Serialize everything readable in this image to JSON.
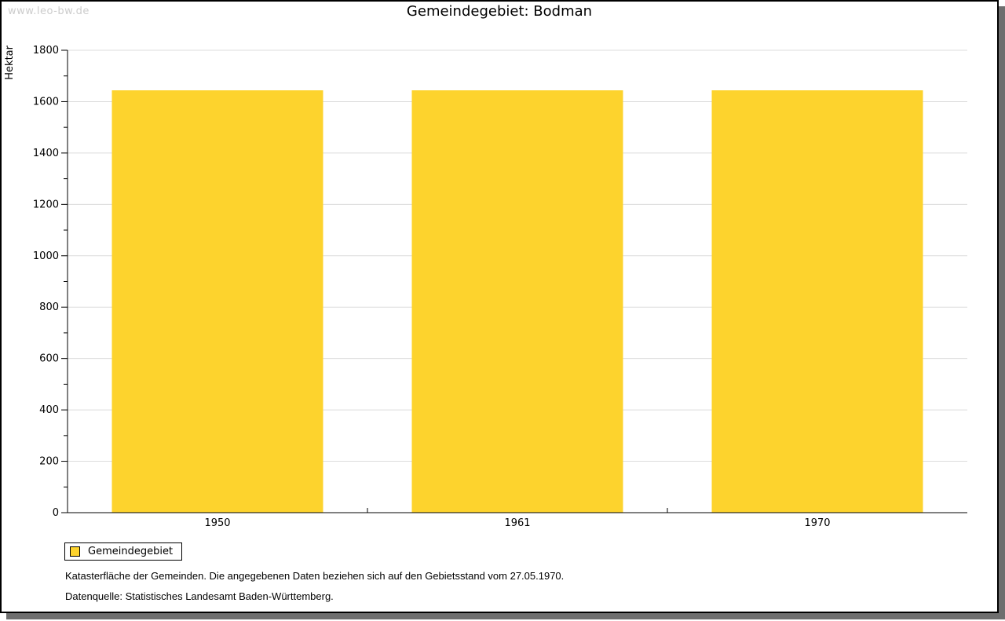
{
  "watermark": "www.leo-bw.de",
  "title": "Gemeindegebiet: Bodman",
  "chart_data": {
    "type": "bar",
    "title": "Gemeindegebiet: Bodman",
    "xlabel": "",
    "ylabel": "Hektar",
    "categories": [
      "1950",
      "1961",
      "1970"
    ],
    "series": [
      {
        "name": "Gemeindegebiet",
        "values": [
          1644,
          1644,
          1644
        ]
      }
    ],
    "ylim": [
      0,
      1800
    ],
    "ytick_step": 200,
    "minor_tick_step": 100,
    "grid": true,
    "legend_position": "bottom-left"
  },
  "legend": {
    "items": [
      {
        "label": "Gemeindegebiet",
        "color": "#FDD32D"
      }
    ]
  },
  "footnotes": [
    "Katasterfläche der Gemeinden. Die angegebenen Daten beziehen sich auf den Gebietsstand vom 27.05.1970.",
    "Datenquelle: Statistisches Landesamt Baden-Württemberg."
  ],
  "colors": {
    "bar": "#FDD32D",
    "grid": "#dcdcdc",
    "axis": "#000000",
    "watermark": "#cccccc",
    "shadow": "#6e6e6e"
  }
}
